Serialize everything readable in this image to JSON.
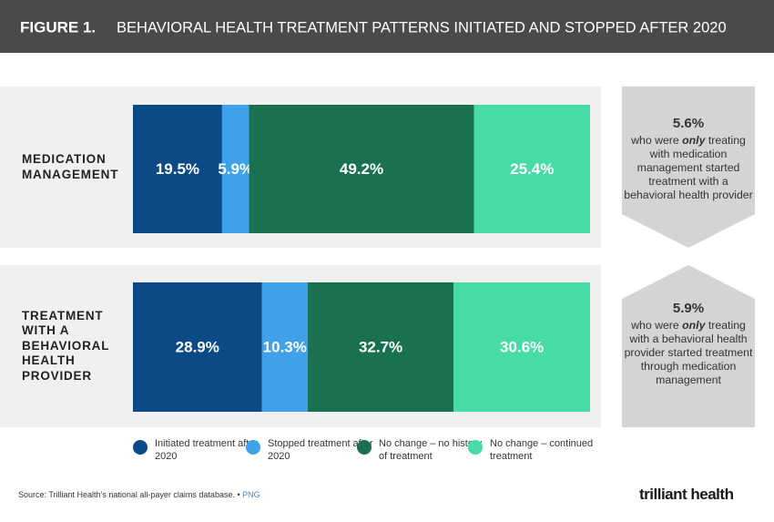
{
  "chart_data": {
    "type": "stacked-bar-horizontal",
    "figure_label": "FIGURE 1.",
    "title": "BEHAVIORAL HEALTH TREATMENT PATTERNS INITIATED AND STOPPED AFTER 2020",
    "categories": [
      "MEDICATION MANAGEMENT",
      "TREATMENT WITH A BEHAVIORAL HEALTH PROVIDER"
    ],
    "series": [
      {
        "name": "Initiated treatment after 2020",
        "color": "#0b4a87",
        "values": [
          19.5,
          28.9
        ],
        "value_labels": [
          "19.5%",
          "28.9%"
        ]
      },
      {
        "name": "Stopped treatment after 2020",
        "color": "#3ea1ea",
        "values": [
          5.9,
          10.3
        ],
        "value_labels": [
          "5.9%",
          "10.3%"
        ]
      },
      {
        "name": "No change – no history of treatment",
        "color": "#197150",
        "values": [
          49.2,
          32.7
        ],
        "value_labels": [
          "49.2%",
          "32.7%"
        ]
      },
      {
        "name": "No change – continued treatment",
        "color": "#47dba5",
        "values": [
          25.4,
          30.6
        ],
        "value_labels": [
          "25.4%",
          "30.6%"
        ]
      }
    ],
    "callouts": [
      {
        "headline": "5.6%",
        "text_before": "who were ",
        "emphasis": "only",
        "text_after": " treating with medication management started treatment with a behavioral health provider"
      },
      {
        "headline": "5.9%",
        "text_before": "who were ",
        "emphasis": "only",
        "text_after": " treating with a behavioral health provider started treatment through medication management"
      }
    ],
    "source": "Source: Trilliant Health’s national all-payer claims database.",
    "source_link": "PNG",
    "logo": "trilliant health"
  }
}
